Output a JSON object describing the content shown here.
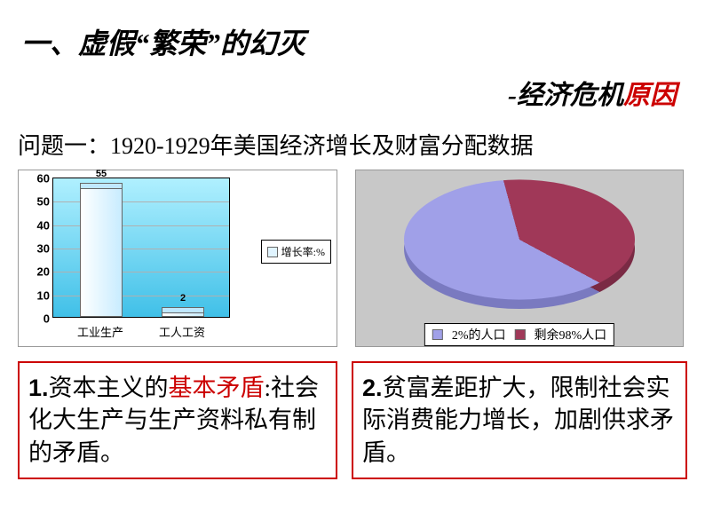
{
  "title": "一、虚假“繁荣”的幻灭",
  "subtitle": {
    "dash": "-",
    "black": "经济危机",
    "red": "原因"
  },
  "question": "问题一：1920-1929年美国经济增长及财富分配数据",
  "bar_chart": {
    "type": "bar",
    "plot_bg_gradient": [
      "#b0f0ff",
      "#40c0e8"
    ],
    "ylim": [
      0,
      60
    ],
    "ytick_step": 10,
    "yticks": [
      "0",
      "10",
      "20",
      "30",
      "40",
      "50",
      "60"
    ],
    "categories": [
      "工业生产",
      "工人工资"
    ],
    "values": [
      55,
      2
    ],
    "bar_fill_gradient": [
      "#ffffff",
      "#c8ecff"
    ],
    "bar_top_color": "#c0e8ff",
    "value_labels": [
      "55",
      "2"
    ],
    "legend_label": "增长率:%",
    "legend_swatch": "#e0f4ff"
  },
  "pie_chart": {
    "type": "pie3d",
    "bg": "#c8c8c8",
    "slices": [
      {
        "label": "2%的人口",
        "color": "#a0a0e8",
        "side_color": "#7a7ac0",
        "fraction": 0.6
      },
      {
        "label": "剩余98%人口",
        "color": "#a03858",
        "side_color": "#7a2a44",
        "fraction": 0.4
      }
    ],
    "legend_swatch_colors": [
      "#a0a0e8",
      "#a03858"
    ]
  },
  "box1": {
    "num": "1.",
    "t1": "资本主义的",
    "red": "基本矛盾",
    "t2": ":社会化大生产与生产资料私有制的矛盾。"
  },
  "box2": {
    "num": "2.",
    "t1": "贫富差距扩大，限制社会实际消费能力增长，加剧供求矛盾。"
  }
}
